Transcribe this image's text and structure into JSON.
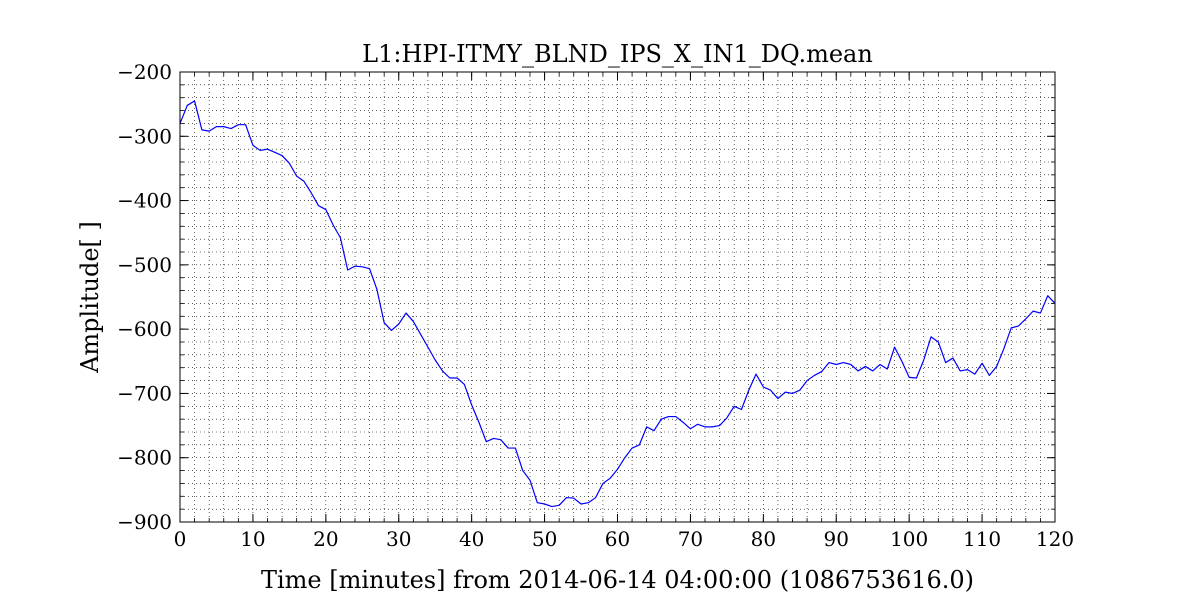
{
  "chart_data": {
    "type": "line",
    "title": "L1:HPI-ITMY_BLND_IPS_X_IN1_DQ.mean",
    "xlabel": "Time [minutes] from 2014-06-14 04:00:00 (1086753616.0)",
    "ylabel": "Amplitude[ ]",
    "xlim": [
      0,
      120
    ],
    "ylim": [
      -900,
      -200
    ],
    "xticks": [
      0,
      10,
      20,
      30,
      40,
      50,
      60,
      70,
      80,
      90,
      100,
      110,
      120
    ],
    "yticks": [
      -900,
      -800,
      -700,
      -600,
      -500,
      -400,
      -300,
      -200
    ],
    "xtick_labels": [
      "0",
      "10",
      "20",
      "30",
      "40",
      "50",
      "60",
      "70",
      "80",
      "90",
      "100",
      "110",
      "120"
    ],
    "ytick_labels": [
      "−900",
      "−800",
      "−700",
      "−600",
      "−500",
      "−400",
      "−300",
      "−200"
    ],
    "grid": true,
    "grid_style": "dotted",
    "line_color": "#0000ff",
    "series": [
      {
        "x": [
          0,
          1,
          2,
          3,
          4,
          5,
          6,
          7,
          8,
          9,
          10,
          11,
          12,
          13,
          14,
          15,
          16,
          17,
          18,
          19,
          20,
          21,
          22,
          23,
          24,
          25,
          26,
          27,
          28,
          29,
          30,
          31,
          32,
          33,
          34,
          35,
          36,
          37,
          38,
          39,
          40,
          41,
          42,
          43,
          44,
          45,
          46,
          47,
          48,
          49,
          50,
          51,
          52,
          53,
          54,
          55,
          56,
          57,
          58,
          59,
          60,
          61,
          62,
          63,
          64,
          65,
          66,
          67,
          68,
          69,
          70,
          71,
          72,
          73,
          74,
          75,
          76,
          77,
          78,
          79,
          80,
          81,
          82,
          83,
          84,
          85,
          86,
          87,
          88,
          89,
          90,
          91,
          92,
          93,
          94,
          95,
          96,
          97,
          98,
          99,
          100,
          101,
          102,
          103,
          104,
          105,
          106,
          107,
          108,
          109,
          110,
          111,
          112,
          113,
          114,
          115,
          116,
          117,
          118,
          119,
          120
        ],
        "values": [
          -280,
          -252,
          -245,
          -290,
          -292,
          -285,
          -285,
          -288,
          -282,
          -282,
          -314,
          -322,
          -320,
          -325,
          -330,
          -342,
          -362,
          -370,
          -388,
          -408,
          -414,
          -438,
          -458,
          -508,
          -502,
          -503,
          -506,
          -538,
          -590,
          -602,
          -592,
          -575,
          -588,
          -608,
          -628,
          -648,
          -665,
          -676,
          -676,
          -686,
          -718,
          -745,
          -775,
          -770,
          -772,
          -785,
          -785,
          -820,
          -835,
          -870,
          -872,
          -876,
          -874,
          -862,
          -863,
          -872,
          -870,
          -862,
          -840,
          -832,
          -818,
          -800,
          -785,
          -780,
          -752,
          -758,
          -740,
          -736,
          -736,
          -745,
          -755,
          -748,
          -752,
          -752,
          -750,
          -738,
          -720,
          -725,
          -695,
          -670,
          -690,
          -695,
          -708,
          -698,
          -700,
          -695,
          -680,
          -672,
          -666,
          -652,
          -655,
          -652,
          -655,
          -665,
          -658,
          -665,
          -655,
          -662,
          -628,
          -650,
          -675,
          -676,
          -648,
          -612,
          -620,
          -652,
          -645,
          -665,
          -663,
          -670,
          -653,
          -672,
          -658,
          -630,
          -598,
          -595,
          -584,
          -572,
          -575,
          -548,
          -560
        ]
      }
    ]
  }
}
